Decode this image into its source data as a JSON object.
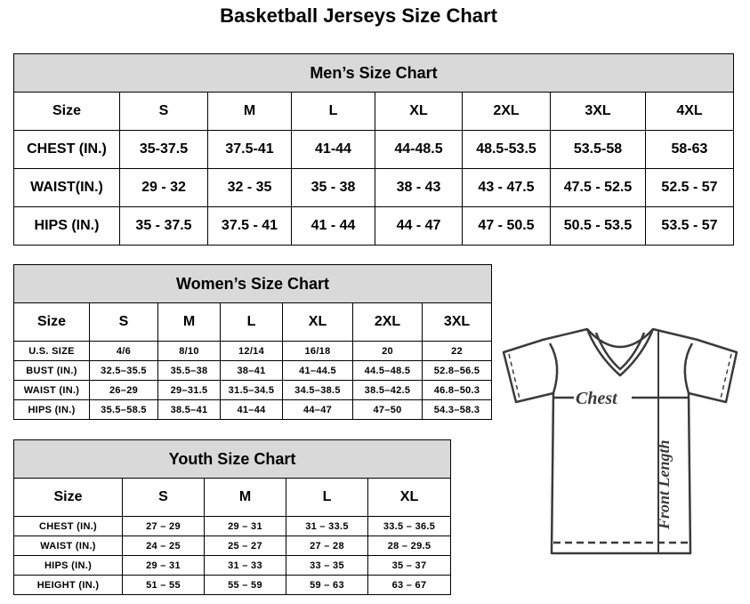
{
  "title": "Basketball Jerseys Size Chart",
  "men": {
    "title": "Men’s Size Chart",
    "header": [
      "Size",
      "S",
      "M",
      "L",
      "XL",
      "2XL",
      "3XL",
      "4XL"
    ],
    "rows": [
      [
        "CHEST (IN.)",
        "35-37.5",
        "37.5-41",
        "41-44",
        "44-48.5",
        "48.5-53.5",
        "53.5-58",
        "58-63"
      ],
      [
        "WAIST(IN.)",
        "29 - 32",
        "32 - 35",
        "35 - 38",
        "38 - 43",
        "43 - 47.5",
        "47.5 - 52.5",
        "52.5 - 57"
      ],
      [
        "HIPS (IN.)",
        "35 - 37.5",
        "37.5 - 41",
        "41 - 44",
        "44 - 47",
        "47 - 50.5",
        "50.5 - 53.5",
        "53.5 - 57"
      ]
    ]
  },
  "women": {
    "title": "Women’s Size Chart",
    "header": [
      "Size",
      "S",
      "M",
      "L",
      "XL",
      "2XL",
      "3XL"
    ],
    "rows": [
      [
        "U.S.  SIZE",
        "4/6",
        "8/10",
        "12/14",
        "16/18",
        "20",
        "22"
      ],
      [
        "BUST  (IN.)",
        "32.5–35.5",
        "35.5–38",
        "38–41",
        "41–44.5",
        "44.5–48.5",
        "52.8–56.5"
      ],
      [
        "WAIST  (IN.)",
        "26–29",
        "29–31.5",
        "31.5–34.5",
        "34.5–38.5",
        "38.5–42.5",
        "46.8–50.3"
      ],
      [
        "HIPS  (IN.)",
        "35.5–58.5",
        "38.5–41",
        "41–44",
        "44–47",
        "47–50",
        "54.3–58.3"
      ]
    ]
  },
  "youth": {
    "title": "Youth Size Chart",
    "header": [
      "Size",
      "S",
      "M",
      "L",
      "XL"
    ],
    "rows": [
      [
        "CHEST  (IN.)",
        "27  –  29",
        "29  –  31",
        "31  –  33.5",
        "33.5  –  36.5"
      ],
      [
        "WAIST  (IN.)",
        "24  –  25",
        "25  –  27",
        "27  –  28",
        "28  –  29.5"
      ],
      [
        "HIPS  (IN.)",
        "29  –  31",
        "31  –  33",
        "33  –  35",
        "35  –  37"
      ],
      [
        "HEIGHT  (IN.)",
        "51  –  55",
        "55  –  59",
        "59  –  63",
        "63  –  67"
      ]
    ]
  },
  "diagram": {
    "chest_label": "Chest",
    "length_label": "Front Length"
  },
  "colors": {
    "header_bg": "#d9d9d9",
    "line": "#3a3a3a"
  }
}
